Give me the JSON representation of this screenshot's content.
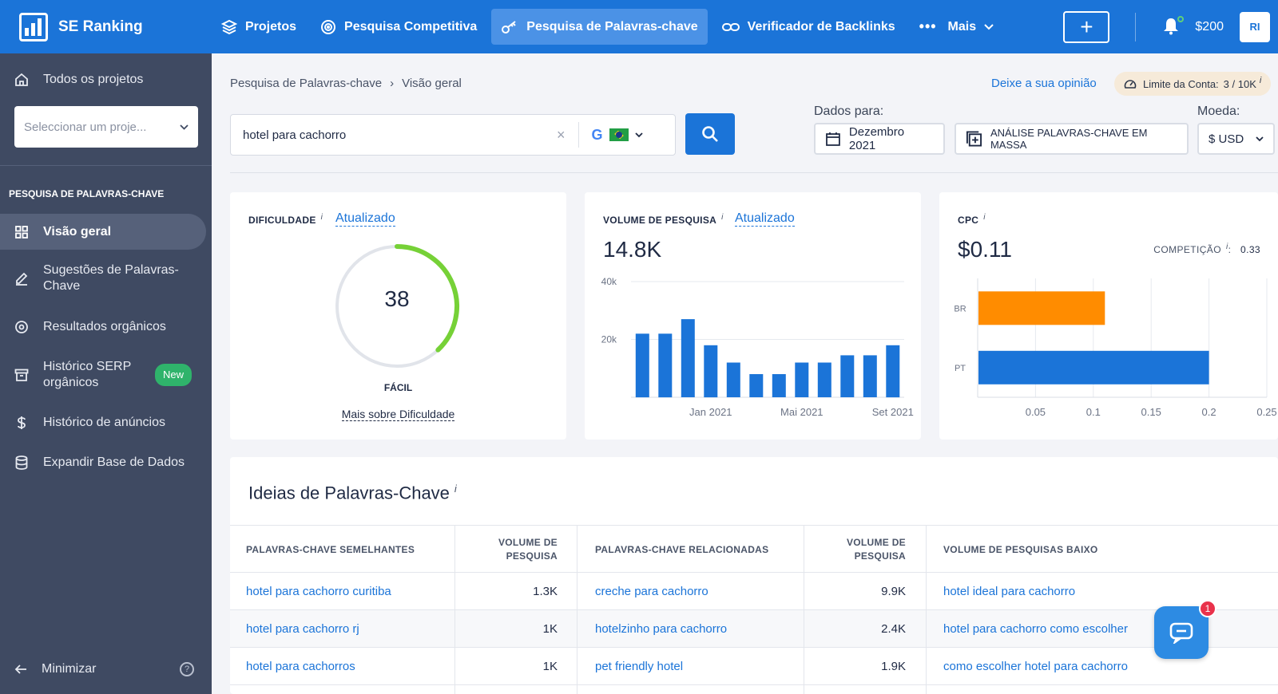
{
  "brand": {
    "name": "SE Ranking"
  },
  "nav": {
    "items": [
      {
        "label": "Projetos",
        "icon": "layers-icon"
      },
      {
        "label": "Pesquisa Competitiva",
        "icon": "target-icon"
      },
      {
        "label": "Pesquisa de Palavras-chave",
        "icon": "key-icon",
        "active": true
      },
      {
        "label": "Verificador de Backlinks",
        "icon": "link-icon"
      },
      {
        "label": "Mais",
        "icon": "more-dots-icon"
      }
    ],
    "balance": "$200",
    "avatar": "RI"
  },
  "sidebar": {
    "all_projects": "Todos os projetos",
    "project_select_placeholder": "Seleccionar um proje...",
    "section": "PESQUISA DE PALAVRAS-CHAVE",
    "items": [
      {
        "label": "Visão geral",
        "icon": "grid-icon"
      },
      {
        "label": "Sugestões de Palavras-Chave",
        "icon": "pencil-icon"
      },
      {
        "label": "Resultados orgânicos",
        "icon": "target-icon"
      },
      {
        "label": "Histórico SERP orgânicos",
        "icon": "archive-icon",
        "badge": "New"
      },
      {
        "label": "Histórico de anúncios",
        "icon": "dollar-icon"
      },
      {
        "label": "Expandir Base de Dados",
        "icon": "database-icon"
      }
    ],
    "minimize": "Minimizar"
  },
  "breadcrumb": {
    "parent": "Pesquisa de Palavras-chave",
    "sep": "›",
    "current": "Visão geral"
  },
  "feedback_link": "Deixe a sua opinião",
  "limit": {
    "label": "Limite da Conta:",
    "value": "3 / 10K",
    "info": "i"
  },
  "search": {
    "value": "hotel para cachorro",
    "engine": "G"
  },
  "data_for": {
    "label": "Dados para:",
    "date": "Dezembro 2021"
  },
  "bulk_button": "ANÁLISE PALAVRAS-CHAVE EM MASSA",
  "currency": {
    "label": "Moeda:",
    "value": "$ USD"
  },
  "difficulty": {
    "title": "DIFICULDADE",
    "info": "i",
    "updated": "Atualizado",
    "value": 38,
    "fraction": 0.38,
    "level": "FÁCIL",
    "more": "Mais sobre Dificuldade",
    "color": "#76d137"
  },
  "volume": {
    "title": "VOLUME DE PESQUISA",
    "info": "i",
    "updated": "Atualizado",
    "value": "14.8K"
  },
  "cpc": {
    "title": "CPC",
    "info": "i",
    "value": "$0.11",
    "competition_label": "COMPETIÇÃO",
    "competition_info": "i",
    "competition_sep": ":",
    "competition_value": "0.33"
  },
  "chart_data": [
    {
      "type": "bar",
      "title": "",
      "y_ticks": [
        "40k",
        "20k"
      ],
      "ylim": [
        0,
        40000
      ],
      "x_ticks": [
        {
          "label": "Jan 2021",
          "index": 3
        },
        {
          "label": "Mai 2021",
          "index": 7
        },
        {
          "label": "Set 2021",
          "index": 11
        }
      ],
      "values": [
        22000,
        22000,
        27000,
        18000,
        12000,
        8000,
        8000,
        12000,
        12000,
        14500,
        14500,
        18000
      ],
      "color": "#1b74d8"
    },
    {
      "type": "bar",
      "orientation": "horizontal",
      "categories": [
        "BR",
        "PT"
      ],
      "values": [
        0.11,
        0.2
      ],
      "xlim": [
        0,
        0.25
      ],
      "x_ticks": [
        "0.05",
        "0.1",
        "0.15",
        "0.2",
        "0.25"
      ],
      "colors": [
        "#ff8c00",
        "#1b74d8"
      ]
    }
  ],
  "ideas": {
    "title": "Ideias de Palavras-Chave",
    "info": "i",
    "headers": [
      "PALAVRAS-CHAVE SEMELHANTES",
      "VOLUME DE PESQUISA",
      "PALAVRAS-CHAVE RELACIONADAS",
      "VOLUME DE PESQUISA",
      "VOLUME DE PESQUISAS BAIXO"
    ],
    "rows": [
      [
        "hotel para cachorro curitiba",
        "1.3K",
        "creche para cachorro",
        "9.9K",
        "hotel ideal para cachorro"
      ],
      [
        "hotel para cachorro rj",
        "1K",
        "hotelzinho para cachorro",
        "2.4K",
        "hotel para cachorro como escolher"
      ],
      [
        "hotel para cachorros",
        "1K",
        "pet friendly hotel",
        "1.9K",
        "como escolher hotel para cachorro"
      ]
    ]
  },
  "chat": {
    "badge": "1"
  }
}
